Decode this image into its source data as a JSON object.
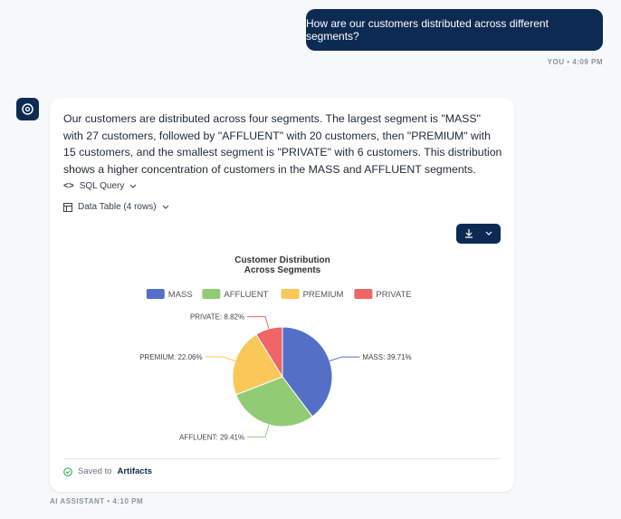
{
  "chat": {
    "user_message": "How are our customers distributed across different segments?",
    "user_meta": "YOU • 4:09 PM",
    "assistant_message": "Our customers are distributed across four segments. The largest segment is \"MASS\" with 27 customers, followed by \"AFFLUENT\" with 20 customers, then \"PREMIUM\" with 15 customers, and the smallest segment is \"PRIVATE\" with 6 customers. This distribution shows a higher concentration of customers in the MASS and AFFLUENT segments.",
    "sql_toggle": "SQL Query",
    "table_toggle": "Data Table (4 rows)",
    "saved_prefix": "Saved to",
    "saved_link": "Artifacts",
    "assistant_meta": "AI ASSISTANT • 4:10 PM"
  },
  "chart_data": {
    "type": "pie",
    "title_lines": [
      "Customer Distribution",
      "Across Segments"
    ],
    "categories": [
      "MASS",
      "AFFLUENT",
      "PREMIUM",
      "PRIVATE"
    ],
    "values": [
      39.71,
      29.41,
      22.06,
      8.82
    ],
    "value_labels": [
      "MASS: 39.71%",
      "AFFLUENT: 29.41%",
      "PREMIUM: 22.06%",
      "PRIVATE: 8.82%"
    ],
    "colors": [
      "#5470c6",
      "#91cc75",
      "#fac858",
      "#ee6666"
    ],
    "legend": "top"
  }
}
